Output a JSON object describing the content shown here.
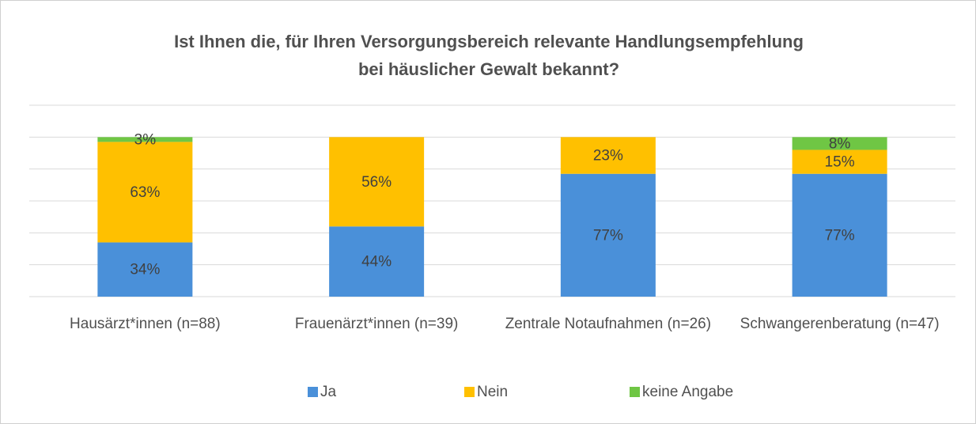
{
  "chart_data": {
    "type": "stacked_bar",
    "title": "Ist Ihnen die, für Ihren Versorgungsbereich relevante Handlungsempfehlung bei häuslicher Gewalt bekannt?",
    "categories": [
      "Hausärzt*innen (n=88)",
      "Frauenärzt*innen (n=39)",
      "Zentrale Notaufnahmen (n=26)",
      "Schwangerenberatung (n=47)"
    ],
    "series": [
      {
        "name": "Ja",
        "color": "#4a90d9",
        "values": [
          34,
          44,
          77,
          77
        ]
      },
      {
        "name": "Nein",
        "color": "#ffc000",
        "values": [
          63,
          56,
          23,
          15
        ]
      },
      {
        "name": "keine Angabe",
        "color": "#6fc644",
        "values": [
          3,
          null,
          null,
          8
        ]
      }
    ],
    "ylim": [
      0,
      120
    ],
    "yticks": [
      0,
      20,
      40,
      60,
      80,
      100,
      120
    ],
    "grid": true,
    "legend": "bottom"
  }
}
